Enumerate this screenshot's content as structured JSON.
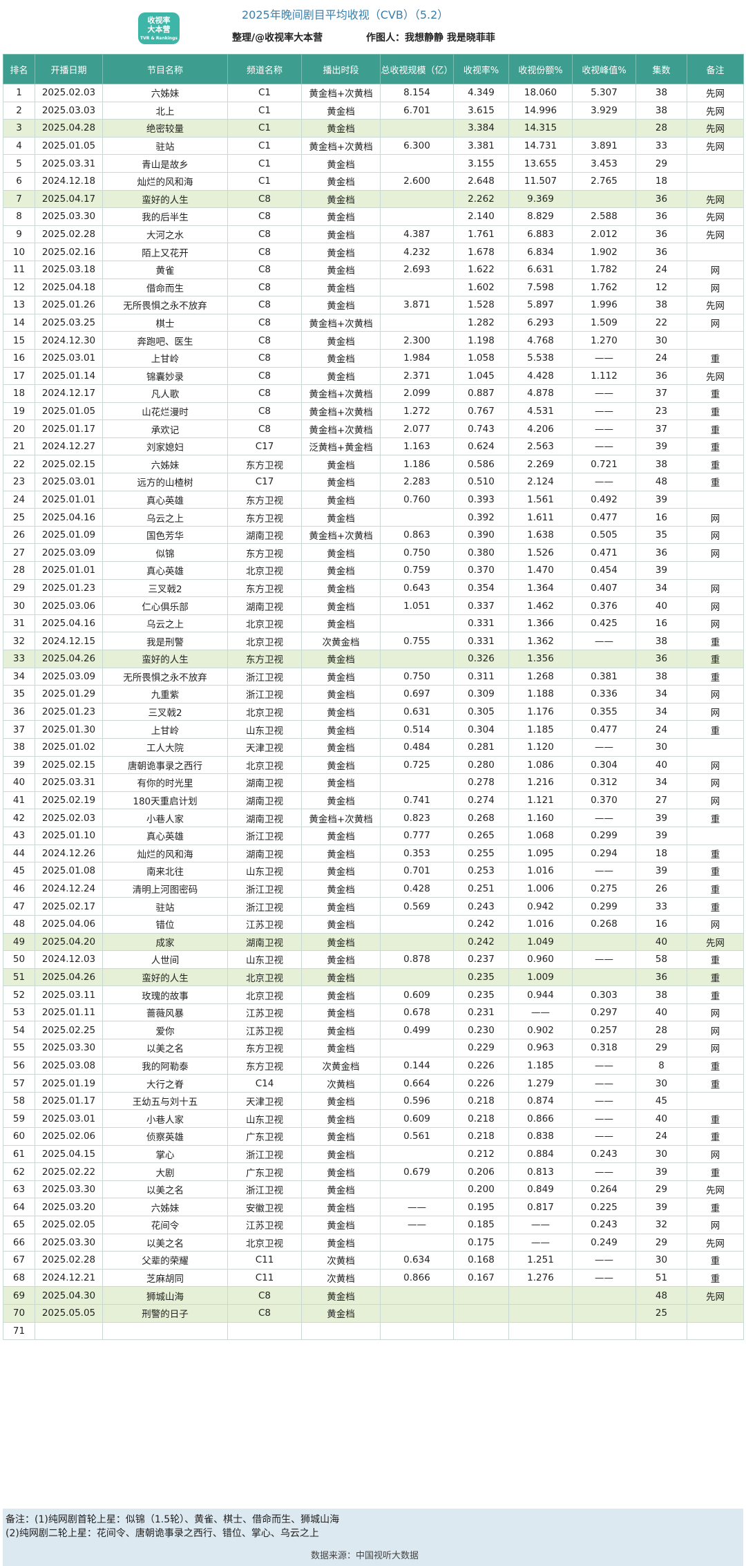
{
  "header": {
    "logo_line1": "收视率",
    "logo_line2": "大本营",
    "logo_line3": "TVR & Rankings",
    "title": "2025年晚间剧目平均收视（CVB）（5.2）",
    "organizer": "整理/@收视率大本营",
    "author": "作图人：我想静静  我是晓菲菲"
  },
  "table": {
    "columns": [
      "排名",
      "开播日期",
      "节目名称",
      "频道名称",
      "播出时段",
      "总收视规模（亿）",
      "收视率%",
      "收视份额%",
      "收视峰值%",
      "集数",
      "备注"
    ],
    "rows": [
      [
        "1",
        "2025.02.03",
        "六姊妹",
        "C1",
        "黄金档+次黄档",
        "8.154",
        "4.349",
        "18.060",
        "5.307",
        "38",
        "先网"
      ],
      [
        "2",
        "2025.03.03",
        "北上",
        "C1",
        "黄金档",
        "6.701",
        "3.615",
        "14.996",
        "3.929",
        "38",
        "先网"
      ],
      [
        "3",
        "2025.04.28",
        "绝密较量",
        "C1",
        "黄金档",
        "",
        "3.384",
        "14.315",
        "",
        "28",
        "先网"
      ],
      [
        "4",
        "2025.01.05",
        "驻站",
        "C1",
        "黄金档+次黄档",
        "6.300",
        "3.381",
        "14.731",
        "3.891",
        "33",
        "先网"
      ],
      [
        "5",
        "2025.03.31",
        "青山是故乡",
        "C1",
        "黄金档",
        "",
        "3.155",
        "13.655",
        "3.453",
        "29",
        ""
      ],
      [
        "6",
        "2024.12.18",
        "灿烂的风和海",
        "C1",
        "黄金档",
        "2.600",
        "2.648",
        "11.507",
        "2.765",
        "18",
        ""
      ],
      [
        "7",
        "2025.04.17",
        "蛮好的人生",
        "C8",
        "黄金档",
        "",
        "2.262",
        "9.369",
        "",
        "36",
        "先网"
      ],
      [
        "8",
        "2025.03.30",
        "我的后半生",
        "C8",
        "黄金档",
        "",
        "2.140",
        "8.829",
        "2.588",
        "36",
        "先网"
      ],
      [
        "9",
        "2025.02.28",
        "大河之水",
        "C8",
        "黄金档",
        "4.387",
        "1.761",
        "6.883",
        "2.012",
        "36",
        "先网"
      ],
      [
        "10",
        "2025.02.16",
        "陌上又花开",
        "C8",
        "黄金档",
        "4.232",
        "1.678",
        "6.834",
        "1.902",
        "36",
        ""
      ],
      [
        "11",
        "2025.03.18",
        "黄雀",
        "C8",
        "黄金档",
        "2.693",
        "1.622",
        "6.631",
        "1.782",
        "24",
        "网"
      ],
      [
        "12",
        "2025.04.18",
        "借命而生",
        "C8",
        "黄金档",
        "",
        "1.602",
        "7.598",
        "1.762",
        "12",
        "网"
      ],
      [
        "13",
        "2025.01.26",
        "无所畏惧之永不放弃",
        "C8",
        "黄金档",
        "3.871",
        "1.528",
        "5.897",
        "1.996",
        "38",
        "先网"
      ],
      [
        "14",
        "2025.03.25",
        "棋士",
        "C8",
        "黄金档+次黄档",
        "",
        "1.282",
        "6.293",
        "1.509",
        "22",
        "网"
      ],
      [
        "15",
        "2024.12.30",
        "奔跑吧、医生",
        "C8",
        "黄金档",
        "2.300",
        "1.198",
        "4.768",
        "1.270",
        "30",
        ""
      ],
      [
        "16",
        "2025.03.01",
        "上甘岭",
        "C8",
        "黄金档",
        "1.984",
        "1.058",
        "5.538",
        "——",
        "24",
        "重"
      ],
      [
        "17",
        "2025.01.14",
        "锦囊妙录",
        "C8",
        "黄金档",
        "2.371",
        "1.045",
        "4.428",
        "1.112",
        "36",
        "先网"
      ],
      [
        "18",
        "2024.12.17",
        "凡人歌",
        "C8",
        "黄金档+次黄档",
        "2.099",
        "0.887",
        "4.878",
        "——",
        "37",
        "重"
      ],
      [
        "19",
        "2025.01.05",
        "山花烂漫时",
        "C8",
        "黄金档+次黄档",
        "1.272",
        "0.767",
        "4.531",
        "——",
        "23",
        "重"
      ],
      [
        "20",
        "2025.01.17",
        "承欢记",
        "C8",
        "黄金档+次黄档",
        "2.077",
        "0.743",
        "4.206",
        "——",
        "37",
        "重"
      ],
      [
        "21",
        "2024.12.27",
        "刘家媳妇",
        "C17",
        "泛黄档+黄金档",
        "1.163",
        "0.624",
        "2.563",
        "——",
        "39",
        "重"
      ],
      [
        "22",
        "2025.02.15",
        "六姊妹",
        "东方卫视",
        "黄金档",
        "1.186",
        "0.586",
        "2.269",
        "0.721",
        "38",
        "重"
      ],
      [
        "23",
        "2025.03.01",
        "远方的山楂树",
        "C17",
        "黄金档",
        "2.283",
        "0.510",
        "2.124",
        "——",
        "48",
        "重"
      ],
      [
        "24",
        "2025.01.01",
        "真心英雄",
        "东方卫视",
        "黄金档",
        "0.760",
        "0.393",
        "1.561",
        "0.492",
        "39",
        ""
      ],
      [
        "25",
        "2025.04.16",
        "乌云之上",
        "东方卫视",
        "黄金档",
        "",
        "0.392",
        "1.611",
        "0.477",
        "16",
        "网"
      ],
      [
        "26",
        "2025.01.09",
        "国色芳华",
        "湖南卫视",
        "黄金档+次黄档",
        "0.863",
        "0.390",
        "1.638",
        "0.505",
        "35",
        "网"
      ],
      [
        "27",
        "2025.03.09",
        "似锦",
        "东方卫视",
        "黄金档",
        "0.750",
        "0.380",
        "1.526",
        "0.471",
        "36",
        "网"
      ],
      [
        "28",
        "2025.01.01",
        "真心英雄",
        "北京卫视",
        "黄金档",
        "0.759",
        "0.370",
        "1.470",
        "0.454",
        "39",
        ""
      ],
      [
        "29",
        "2025.01.23",
        "三叉戟2",
        "东方卫视",
        "黄金档",
        "0.643",
        "0.354",
        "1.364",
        "0.407",
        "34",
        "网"
      ],
      [
        "30",
        "2025.03.06",
        "仁心俱乐部",
        "湖南卫视",
        "黄金档",
        "1.051",
        "0.337",
        "1.462",
        "0.376",
        "40",
        "网"
      ],
      [
        "31",
        "2025.04.16",
        "乌云之上",
        "北京卫视",
        "黄金档",
        "",
        "0.331",
        "1.366",
        "0.425",
        "16",
        "网"
      ],
      [
        "32",
        "2024.12.15",
        "我是刑警",
        "北京卫视",
        "次黄金档",
        "0.755",
        "0.331",
        "1.362",
        "——",
        "38",
        "重"
      ],
      [
        "33",
        "2025.04.26",
        "蛮好的人生",
        "东方卫视",
        "黄金档",
        "",
        "0.326",
        "1.356",
        "",
        "36",
        "重"
      ],
      [
        "34",
        "2025.03.09",
        "无所畏惧之永不放弃",
        "浙江卫视",
        "黄金档",
        "0.750",
        "0.311",
        "1.268",
        "0.381",
        "38",
        "重"
      ],
      [
        "35",
        "2025.01.29",
        "九重紫",
        "浙江卫视",
        "黄金档",
        "0.697",
        "0.309",
        "1.188",
        "0.336",
        "34",
        "网"
      ],
      [
        "36",
        "2025.01.23",
        "三叉戟2",
        "北京卫视",
        "黄金档",
        "0.631",
        "0.305",
        "1.176",
        "0.355",
        "34",
        "网"
      ],
      [
        "37",
        "2025.01.30",
        "上甘岭",
        "山东卫视",
        "黄金档",
        "0.514",
        "0.304",
        "1.185",
        "0.477",
        "24",
        "重"
      ],
      [
        "38",
        "2025.01.02",
        "工人大院",
        "天津卫视",
        "黄金档",
        "0.484",
        "0.281",
        "1.120",
        "——",
        "30",
        ""
      ],
      [
        "39",
        "2025.02.15",
        "唐朝诡事录之西行",
        "北京卫视",
        "黄金档",
        "0.725",
        "0.280",
        "1.086",
        "0.304",
        "40",
        "网"
      ],
      [
        "40",
        "2025.03.31",
        "有你的时光里",
        "湖南卫视",
        "黄金档",
        "",
        "0.278",
        "1.216",
        "0.312",
        "34",
        "网"
      ],
      [
        "41",
        "2025.02.19",
        "180天重启计划",
        "湖南卫视",
        "黄金档",
        "0.741",
        "0.274",
        "1.121",
        "0.370",
        "27",
        "网"
      ],
      [
        "42",
        "2025.02.03",
        "小巷人家",
        "湖南卫视",
        "黄金档+次黄档",
        "0.823",
        "0.268",
        "1.160",
        "——",
        "39",
        "重"
      ],
      [
        "43",
        "2025.01.10",
        "真心英雄",
        "浙江卫视",
        "黄金档",
        "0.777",
        "0.265",
        "1.068",
        "0.299",
        "39",
        ""
      ],
      [
        "44",
        "2024.12.26",
        "灿烂的风和海",
        "湖南卫视",
        "黄金档",
        "0.353",
        "0.255",
        "1.095",
        "0.294",
        "18",
        "重"
      ],
      [
        "45",
        "2025.01.08",
        "南来北往",
        "山东卫视",
        "黄金档",
        "0.701",
        "0.253",
        "1.016",
        "——",
        "39",
        "重"
      ],
      [
        "46",
        "2024.12.24",
        "清明上河图密码",
        "浙江卫视",
        "黄金档",
        "0.428",
        "0.251",
        "1.006",
        "0.275",
        "26",
        "重"
      ],
      [
        "47",
        "2025.02.17",
        "驻站",
        "浙江卫视",
        "黄金档",
        "0.569",
        "0.243",
        "0.942",
        "0.299",
        "33",
        "重"
      ],
      [
        "48",
        "2025.04.06",
        "错位",
        "江苏卫视",
        "黄金档",
        "",
        "0.242",
        "1.016",
        "0.268",
        "16",
        "网"
      ],
      [
        "49",
        "2025.04.20",
        "成家",
        "湖南卫视",
        "黄金档",
        "",
        "0.242",
        "1.049",
        "",
        "40",
        "先网"
      ],
      [
        "50",
        "2024.12.03",
        "人世间",
        "山东卫视",
        "黄金档",
        "0.878",
        "0.237",
        "0.960",
        "——",
        "58",
        "重"
      ],
      [
        "51",
        "2025.04.26",
        "蛮好的人生",
        "北京卫视",
        "黄金档",
        "",
        "0.235",
        "1.009",
        "",
        "36",
        "重"
      ],
      [
        "52",
        "2025.03.11",
        "玫瑰的故事",
        "北京卫视",
        "黄金档",
        "0.609",
        "0.235",
        "0.944",
        "0.303",
        "38",
        "重"
      ],
      [
        "53",
        "2025.01.11",
        "蔷薇风暴",
        "江苏卫视",
        "黄金档",
        "0.678",
        "0.231",
        "——",
        "0.297",
        "40",
        "网"
      ],
      [
        "54",
        "2025.02.25",
        "爱你",
        "江苏卫视",
        "黄金档",
        "0.499",
        "0.230",
        "0.902",
        "0.257",
        "28",
        "网"
      ],
      [
        "55",
        "2025.03.30",
        "以美之名",
        "东方卫视",
        "黄金档",
        "",
        "0.229",
        "0.963",
        "0.318",
        "29",
        "网"
      ],
      [
        "56",
        "2025.03.08",
        "我的阿勒泰",
        "东方卫视",
        "次黄金档",
        "0.144",
        "0.226",
        "1.185",
        "——",
        "8",
        "重"
      ],
      [
        "57",
        "2025.01.19",
        "大行之脊",
        "C14",
        "次黄档",
        "0.664",
        "0.226",
        "1.279",
        "——",
        "30",
        "重"
      ],
      [
        "58",
        "2025.01.17",
        "王幼五与刘十五",
        "天津卫视",
        "黄金档",
        "0.596",
        "0.218",
        "0.874",
        "——",
        "45",
        ""
      ],
      [
        "59",
        "2025.03.01",
        "小巷人家",
        "山东卫视",
        "黄金档",
        "0.609",
        "0.218",
        "0.866",
        "——",
        "40",
        "重"
      ],
      [
        "60",
        "2025.02.06",
        "侦察英雄",
        "广东卫视",
        "黄金档",
        "0.561",
        "0.218",
        "0.838",
        "——",
        "24",
        "重"
      ],
      [
        "61",
        "2025.04.15",
        "掌心",
        "浙江卫视",
        "黄金档",
        "",
        "0.212",
        "0.884",
        "0.243",
        "30",
        "网"
      ],
      [
        "62",
        "2025.02.22",
        "大剧",
        "广东卫视",
        "黄金档",
        "0.679",
        "0.206",
        "0.813",
        "——",
        "39",
        "重"
      ],
      [
        "63",
        "2025.03.30",
        "以美之名",
        "浙江卫视",
        "黄金档",
        "",
        "0.200",
        "0.849",
        "0.264",
        "29",
        "先网"
      ],
      [
        "64",
        "2025.03.20",
        "六姊妹",
        "安徽卫视",
        "黄金档",
        "——",
        "0.195",
        "0.817",
        "0.225",
        "39",
        "重"
      ],
      [
        "65",
        "2025.02.05",
        "花间令",
        "江苏卫视",
        "黄金档",
        "——",
        "0.185",
        "——",
        "0.243",
        "32",
        "网"
      ],
      [
        "66",
        "2025.03.30",
        "以美之名",
        "北京卫视",
        "黄金档",
        "",
        "0.175",
        "——",
        "0.249",
        "29",
        "先网"
      ],
      [
        "67",
        "2025.02.28",
        "父辈的荣耀",
        "C11",
        "次黄档",
        "0.634",
        "0.168",
        "1.251",
        "——",
        "30",
        "重"
      ],
      [
        "68",
        "2024.12.21",
        "芝麻胡同",
        "C11",
        "次黄档",
        "0.866",
        "0.167",
        "1.276",
        "——",
        "51",
        "重"
      ],
      [
        "69",
        "2025.04.30",
        "狮城山海",
        "C8",
        "黄金档",
        "",
        "",
        "",
        "",
        "48",
        "先网"
      ],
      [
        "70",
        "2025.05.05",
        "刑警的日子",
        "C8",
        "黄金档",
        "",
        "",
        "",
        "",
        "25",
        ""
      ],
      [
        "71",
        "",
        "",
        "",
        "",
        "",
        "",
        "",
        "",
        "",
        ""
      ]
    ],
    "highlight_ranks": [
      "3",
      "7",
      "33",
      "49",
      "51",
      "69",
      "70"
    ]
  },
  "notes": {
    "line1": "备注：(1)纯网剧首轮上星：似锦（1.5轮）、黄雀、棋士、借命而生、狮城山海",
    "line2": "(2)纯网剧二轮上星：花间令、唐朝诡事录之西行、错位、掌心、乌云之上",
    "source": "数据来源：中国视听大数据"
  }
}
